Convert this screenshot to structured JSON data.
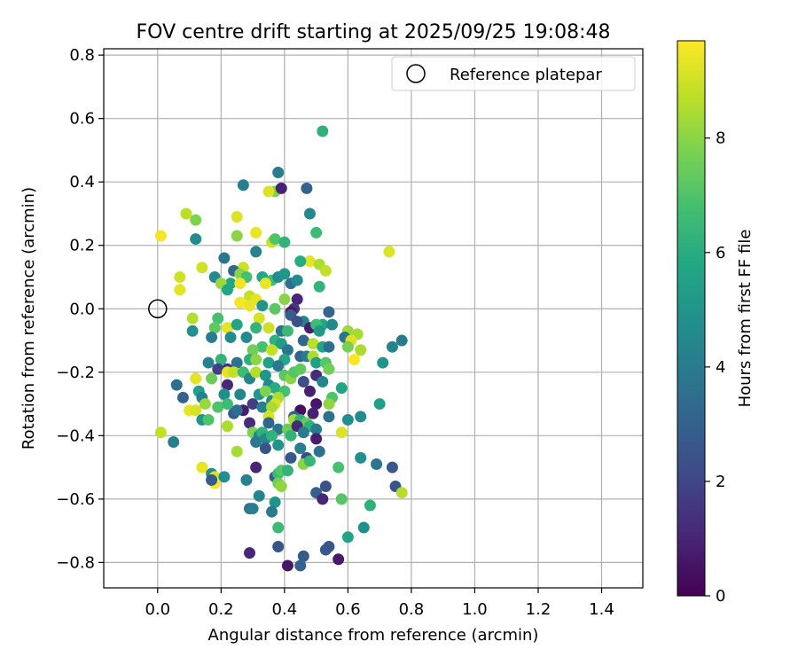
{
  "chart_data": {
    "type": "scatter",
    "title": "FOV centre drift starting at 2025/09/25 19:08:48",
    "xlabel": "Angular distance from reference (arcmin)",
    "ylabel": "Rotation from reference (arcmin)",
    "xlim": [
      -0.17,
      1.53
    ],
    "ylim": [
      -0.88,
      0.82
    ],
    "xticks": [
      0.0,
      0.2,
      0.4,
      0.6,
      0.8,
      1.0,
      1.2,
      1.4
    ],
    "xtick_labels": [
      "0.0",
      "0.2",
      "0.4",
      "0.6",
      "0.8",
      "1.0",
      "1.2",
      "1.4"
    ],
    "yticks": [
      -0.8,
      -0.6,
      -0.4,
      -0.2,
      0.0,
      0.2,
      0.4,
      0.6,
      0.8
    ],
    "ytick_labels": [
      "−0.8",
      "−0.6",
      "−0.4",
      "−0.2",
      "0.0",
      "0.2",
      "0.4",
      "0.6",
      "0.8"
    ],
    "grid": true,
    "legend": {
      "position": "top-right",
      "entries": [
        "Reference platepar"
      ]
    },
    "reference_point": {
      "label": "Reference platepar",
      "x": 0.0,
      "y": 0.0
    },
    "colorbar": {
      "label": "Hours from first FF file",
      "colormap": "viridis",
      "range": [
        0,
        9.7
      ],
      "ticks": [
        0,
        2,
        4,
        6,
        8
      ],
      "tick_labels": [
        "0",
        "2",
        "4",
        "6",
        "8"
      ]
    },
    "points": [
      [
        0.52,
        0.56,
        6.2
      ],
      [
        0.38,
        0.43,
        4.0
      ],
      [
        0.37,
        0.37,
        7.8
      ],
      [
        0.39,
        0.38,
        0.9
      ],
      [
        0.27,
        0.39,
        4.2
      ],
      [
        0.47,
        0.38,
        3.0
      ],
      [
        0.35,
        0.37,
        9.2
      ],
      [
        0.48,
        0.3,
        4.5
      ],
      [
        0.25,
        0.29,
        9.2
      ],
      [
        0.09,
        0.3,
        8.7
      ],
      [
        0.12,
        0.28,
        7.8
      ],
      [
        0.31,
        0.24,
        9.4
      ],
      [
        0.36,
        0.21,
        9.0
      ],
      [
        0.37,
        0.22,
        7.0
      ],
      [
        0.4,
        0.21,
        6.3
      ],
      [
        0.5,
        0.24,
        6.6
      ],
      [
        0.25,
        0.23,
        8.0
      ],
      [
        0.01,
        0.23,
        9.6
      ],
      [
        0.12,
        0.22,
        4.6
      ],
      [
        0.31,
        0.18,
        4.3
      ],
      [
        0.73,
        0.18,
        9.2
      ],
      [
        0.21,
        0.16,
        3.8
      ],
      [
        0.48,
        0.15,
        9.3
      ],
      [
        0.51,
        0.14,
        8.5
      ],
      [
        0.53,
        0.12,
        8.8
      ],
      [
        0.45,
        0.15,
        6.0
      ],
      [
        0.27,
        0.13,
        9.0
      ],
      [
        0.24,
        0.12,
        3.3
      ],
      [
        0.26,
        0.11,
        8.0
      ],
      [
        0.14,
        0.13,
        9.0
      ],
      [
        0.07,
        0.1,
        9.0
      ],
      [
        0.18,
        0.1,
        4.5
      ],
      [
        0.23,
        0.08,
        5.7
      ],
      [
        0.2,
        0.08,
        8.2
      ],
      [
        0.28,
        0.1,
        6.8
      ],
      [
        0.33,
        0.1,
        5.8
      ],
      [
        0.36,
        0.09,
        6.7
      ],
      [
        0.38,
        0.1,
        4.6
      ],
      [
        0.4,
        0.11,
        5.1
      ],
      [
        0.42,
        0.08,
        3.5
      ],
      [
        0.44,
        0.09,
        4.6
      ],
      [
        0.34,
        0.08,
        9.4
      ],
      [
        0.26,
        0.08,
        9.5
      ],
      [
        0.22,
        0.06,
        5.7
      ],
      [
        0.07,
        0.06,
        9.3
      ],
      [
        0.29,
        0.04,
        8.8
      ],
      [
        0.31,
        0.03,
        9.3
      ],
      [
        0.4,
        0.03,
        8.0
      ],
      [
        0.44,
        0.03,
        1.0
      ],
      [
        0.51,
        0.07,
        6.3
      ],
      [
        0.26,
        0.02,
        9.6
      ],
      [
        0.29,
        0.01,
        9.4
      ],
      [
        0.33,
        0.01,
        5.0
      ],
      [
        0.37,
        0.0,
        7.2
      ],
      [
        0.43,
        0.0,
        1.5
      ],
      [
        0.42,
        -0.01,
        0.6
      ],
      [
        0.11,
        -0.03,
        8.6
      ],
      [
        0.19,
        -0.03,
        6.8
      ],
      [
        0.32,
        -0.03,
        9.1
      ],
      [
        0.42,
        -0.02,
        2.8
      ],
      [
        0.46,
        -0.04,
        4.3
      ],
      [
        0.54,
        -0.01,
        3.2
      ],
      [
        0.52,
        -0.05,
        5.7
      ],
      [
        0.55,
        -0.05,
        4.5
      ],
      [
        0.11,
        -0.07,
        4.8
      ],
      [
        0.18,
        -0.06,
        7.3
      ],
      [
        0.22,
        -0.06,
        9.3
      ],
      [
        0.25,
        -0.05,
        5.6
      ],
      [
        0.31,
        -0.06,
        6.3
      ],
      [
        0.35,
        -0.06,
        9.0
      ],
      [
        0.44,
        -0.04,
        2.4
      ],
      [
        0.48,
        -0.06,
        0.8
      ],
      [
        0.5,
        -0.05,
        6.6
      ],
      [
        0.51,
        -0.07,
        5.2
      ],
      [
        0.6,
        -0.07,
        8.3
      ],
      [
        0.63,
        -0.08,
        8.4
      ],
      [
        0.17,
        -0.09,
        4.0
      ],
      [
        0.23,
        -0.09,
        4.6
      ],
      [
        0.28,
        -0.09,
        4.5
      ],
      [
        0.39,
        -0.07,
        3.8
      ],
      [
        0.41,
        -0.07,
        6.5
      ],
      [
        0.59,
        -0.09,
        3.8
      ],
      [
        0.61,
        -0.1,
        9.2
      ],
      [
        0.6,
        -0.12,
        7.7
      ],
      [
        0.37,
        -0.1,
        6.2
      ],
      [
        0.39,
        -0.11,
        5.3
      ],
      [
        0.46,
        -0.1,
        3.2
      ],
      [
        0.49,
        -0.11,
        8.7
      ],
      [
        0.52,
        -0.12,
        5.8
      ],
      [
        0.54,
        -0.12,
        3.5
      ],
      [
        0.33,
        -0.12,
        6.8
      ],
      [
        0.36,
        -0.13,
        8.8
      ],
      [
        0.3,
        -0.13,
        7.6
      ],
      [
        0.41,
        -0.13,
        3.8
      ],
      [
        0.64,
        -0.13,
        8.5
      ],
      [
        0.62,
        -0.16,
        9.7
      ],
      [
        0.74,
        -0.12,
        4.4
      ],
      [
        0.77,
        -0.1,
        4.0
      ],
      [
        0.71,
        -0.17,
        5.0
      ],
      [
        0.16,
        -0.17,
        4.3
      ],
      [
        0.2,
        -0.16,
        6.3
      ],
      [
        0.19,
        -0.19,
        1.8
      ],
      [
        0.25,
        -0.17,
        3.7
      ],
      [
        0.29,
        -0.16,
        6.1
      ],
      [
        0.31,
        -0.16,
        8.0
      ],
      [
        0.35,
        -0.17,
        5.5
      ],
      [
        0.4,
        -0.16,
        5.8
      ],
      [
        0.45,
        -0.15,
        3.1
      ],
      [
        0.47,
        -0.15,
        4.0
      ],
      [
        0.49,
        -0.15,
        8.5
      ],
      [
        0.5,
        -0.17,
        5.5
      ],
      [
        0.53,
        -0.17,
        7.1
      ],
      [
        0.54,
        -0.19,
        7.6
      ],
      [
        0.22,
        -0.19,
        1.5
      ],
      [
        0.22,
        -0.2,
        9.3
      ],
      [
        0.24,
        -0.2,
        8.8
      ],
      [
        0.27,
        -0.2,
        6.6
      ],
      [
        0.29,
        -0.22,
        4.4
      ],
      [
        0.31,
        -0.2,
        8.6
      ],
      [
        0.34,
        -0.21,
        5.0
      ],
      [
        0.38,
        -0.18,
        3.9
      ],
      [
        0.4,
        -0.21,
        7.2
      ],
      [
        0.42,
        -0.22,
        8.0
      ],
      [
        0.43,
        -0.2,
        7.1
      ],
      [
        0.45,
        -0.19,
        7.3
      ],
      [
        0.5,
        -0.21,
        1.2
      ],
      [
        0.12,
        -0.22,
        9.3
      ],
      [
        0.17,
        -0.22,
        7.5
      ],
      [
        0.22,
        -0.24,
        1.1
      ],
      [
        0.35,
        -0.24,
        4.6
      ],
      [
        0.37,
        -0.25,
        6.0
      ],
      [
        0.4,
        -0.26,
        6.8
      ],
      [
        0.46,
        -0.23,
        2.3
      ],
      [
        0.52,
        -0.23,
        4.4
      ],
      [
        0.06,
        -0.24,
        3.5
      ],
      [
        0.13,
        -0.26,
        5.5
      ],
      [
        0.14,
        -0.28,
        4.2
      ],
      [
        0.21,
        -0.27,
        4.8
      ],
      [
        0.26,
        -0.27,
        4.4
      ],
      [
        0.32,
        -0.27,
        5.0
      ],
      [
        0.34,
        -0.26,
        7.8
      ],
      [
        0.36,
        -0.29,
        4.6
      ],
      [
        0.38,
        -0.28,
        8.5
      ],
      [
        0.48,
        -0.26,
        0.9
      ],
      [
        0.55,
        -0.28,
        7.0
      ],
      [
        0.58,
        -0.25,
        5.7
      ],
      [
        0.08,
        -0.28,
        3.0
      ],
      [
        0.15,
        -0.3,
        8.2
      ],
      [
        0.19,
        -0.31,
        7.0
      ],
      [
        0.22,
        -0.3,
        6.6
      ],
      [
        0.3,
        -0.3,
        1.8
      ],
      [
        0.33,
        -0.31,
        4.2
      ],
      [
        0.37,
        -0.3,
        9.1
      ],
      [
        0.36,
        -0.31,
        8.5
      ],
      [
        0.5,
        -0.3,
        0.6
      ],
      [
        0.54,
        -0.3,
        8.1
      ],
      [
        0.7,
        -0.3,
        5.5
      ],
      [
        0.1,
        -0.32,
        9.4
      ],
      [
        0.12,
        -0.32,
        9.1
      ],
      [
        0.24,
        -0.33,
        2.8
      ],
      [
        0.27,
        -0.32,
        0.8
      ],
      [
        0.25,
        -0.32,
        3.5
      ],
      [
        0.35,
        -0.34,
        9.1
      ],
      [
        0.45,
        -0.32,
        0.4
      ],
      [
        0.43,
        -0.34,
        3.1
      ],
      [
        0.49,
        -0.33,
        0.9
      ],
      [
        0.14,
        -0.35,
        5.0
      ],
      [
        0.16,
        -0.35,
        7.0
      ],
      [
        0.29,
        -0.36,
        1.2
      ],
      [
        0.35,
        -0.36,
        3.2
      ],
      [
        0.43,
        -0.35,
        8.4
      ],
      [
        0.45,
        -0.35,
        6.3
      ],
      [
        0.47,
        -0.36,
        7.4
      ],
      [
        0.54,
        -0.34,
        3.6
      ],
      [
        0.6,
        -0.35,
        4.8
      ],
      [
        0.64,
        -0.34,
        4.6
      ],
      [
        0.22,
        -0.37,
        8.5
      ],
      [
        0.3,
        -0.39,
        7.8
      ],
      [
        0.32,
        -0.4,
        4.5
      ],
      [
        0.33,
        -0.39,
        6.2
      ],
      [
        0.38,
        -0.38,
        3.8
      ],
      [
        0.41,
        -0.38,
        7.5
      ],
      [
        0.44,
        -0.37,
        1.1
      ],
      [
        0.48,
        -0.37,
        6.2
      ],
      [
        0.5,
        -0.38,
        4.0
      ],
      [
        0.01,
        -0.39,
        8.8
      ],
      [
        0.31,
        -0.42,
        3.9
      ],
      [
        0.34,
        -0.41,
        4.5
      ],
      [
        0.36,
        -0.4,
        6.3
      ],
      [
        0.42,
        -0.4,
        6.3
      ],
      [
        0.46,
        -0.39,
        4.0
      ],
      [
        0.5,
        -0.41,
        0.8
      ],
      [
        0.58,
        -0.39,
        9.2
      ],
      [
        0.05,
        -0.42,
        4.2
      ],
      [
        0.34,
        -0.44,
        2.5
      ],
      [
        0.25,
        -0.45,
        8.4
      ],
      [
        0.38,
        -0.43,
        5.0
      ],
      [
        0.45,
        -0.44,
        4.1
      ],
      [
        0.42,
        -0.47,
        2.6
      ],
      [
        0.51,
        -0.45,
        3.6
      ],
      [
        0.47,
        -0.47,
        2.2
      ],
      [
        0.14,
        -0.5,
        9.4
      ],
      [
        0.31,
        -0.5,
        1.0
      ],
      [
        0.46,
        -0.49,
        8.0
      ],
      [
        0.48,
        -0.48,
        6.4
      ],
      [
        0.57,
        -0.5,
        6.8
      ],
      [
        0.64,
        -0.47,
        4.8
      ],
      [
        0.69,
        -0.49,
        3.8
      ],
      [
        0.74,
        -0.5,
        2.7
      ],
      [
        0.17,
        -0.52,
        4.6
      ],
      [
        0.18,
        -0.53,
        9.2
      ],
      [
        0.18,
        -0.55,
        9.7
      ],
      [
        0.17,
        -0.54,
        2.8
      ],
      [
        0.21,
        -0.53,
        4.8
      ],
      [
        0.28,
        -0.54,
        4.2
      ],
      [
        0.37,
        -0.53,
        3.0
      ],
      [
        0.38,
        -0.52,
        6.6
      ],
      [
        0.39,
        -0.51,
        7.1
      ],
      [
        0.41,
        -0.51,
        6.3
      ],
      [
        0.38,
        -0.55,
        7.6
      ],
      [
        0.39,
        -0.56,
        8.1
      ],
      [
        0.5,
        -0.58,
        3.0
      ],
      [
        0.52,
        -0.6,
        1.0
      ],
      [
        0.53,
        -0.56,
        2.4
      ],
      [
        0.32,
        -0.59,
        4.4
      ],
      [
        0.37,
        -0.61,
        5.0
      ],
      [
        0.58,
        -0.6,
        7.1
      ],
      [
        0.29,
        -0.63,
        3.7
      ],
      [
        0.3,
        -0.63,
        4.1
      ],
      [
        0.36,
        -0.64,
        3.9
      ],
      [
        0.67,
        -0.62,
        6.2
      ],
      [
        0.75,
        -0.56,
        2.6
      ],
      [
        0.77,
        -0.58,
        8.6
      ],
      [
        0.38,
        -0.69,
        6.6
      ],
      [
        0.6,
        -0.72,
        5.7
      ],
      [
        0.65,
        -0.69,
        4.8
      ],
      [
        0.38,
        -0.75,
        2.6
      ],
      [
        0.53,
        -0.76,
        2.8
      ],
      [
        0.54,
        -0.75,
        2.6
      ],
      [
        0.29,
        -0.77,
        1.0
      ],
      [
        0.46,
        -0.78,
        2.8
      ],
      [
        0.45,
        -0.81,
        3.0
      ],
      [
        0.41,
        -0.81,
        0.6
      ],
      [
        0.57,
        -0.79,
        0.7
      ]
    ]
  }
}
